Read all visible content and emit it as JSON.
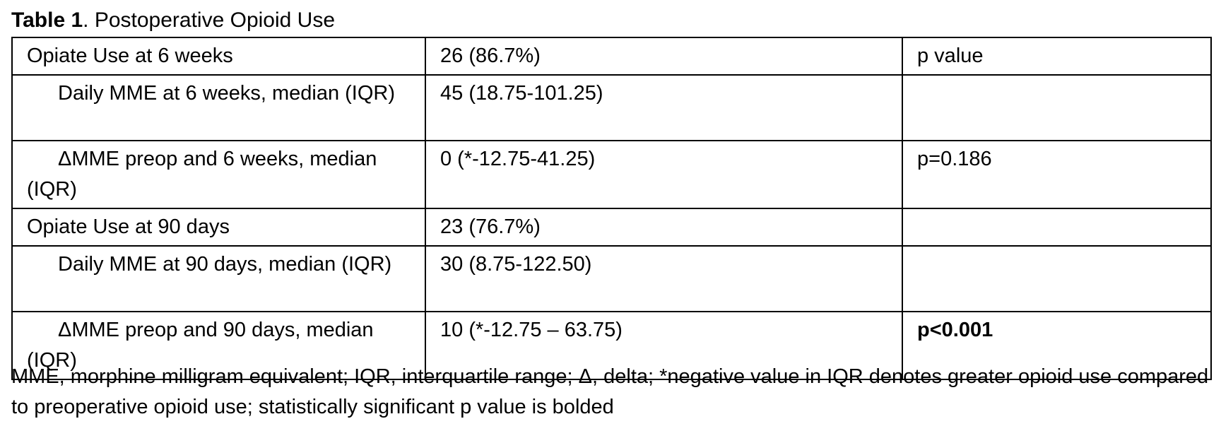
{
  "caption": {
    "label": "Table 1",
    "title": ". Postoperative Opioid Use"
  },
  "table": {
    "rows": [
      {
        "label": "Opiate Use at 6 weeks",
        "indent": false,
        "value": "26 (86.7%)",
        "p": "p value",
        "p_bold": false
      },
      {
        "label": "Daily MME at 6 weeks, median (IQR)",
        "indent": true,
        "value": "45 (18.75-101.25)",
        "p": "",
        "p_bold": false
      },
      {
        "label": "ΔMME preop and 6 weeks, median (IQR)",
        "indent": true,
        "value": "0 (*-12.75-41.25)",
        "p": "p=0.186",
        "p_bold": false
      },
      {
        "label": "Opiate Use at 90 days",
        "indent": false,
        "value": "23 (76.7%)",
        "p": "",
        "p_bold": false
      },
      {
        "label": "Daily MME at 90 days, median (IQR)",
        "indent": true,
        "value": "30 (8.75-122.50)",
        "p": "",
        "p_bold": false
      },
      {
        "label": "ΔMME preop and 90 days, median (IQR)",
        "indent": true,
        "value": "10 (*-12.75 – 63.75)",
        "p": "p<0.001",
        "p_bold": true
      }
    ]
  },
  "footnote": "MME, morphine milligram equivalent; IQR, interquartile range; Δ, delta; *negative value in IQR denotes greater opioid use compared to preoperative opioid use; statistically significant p value is bolded"
}
